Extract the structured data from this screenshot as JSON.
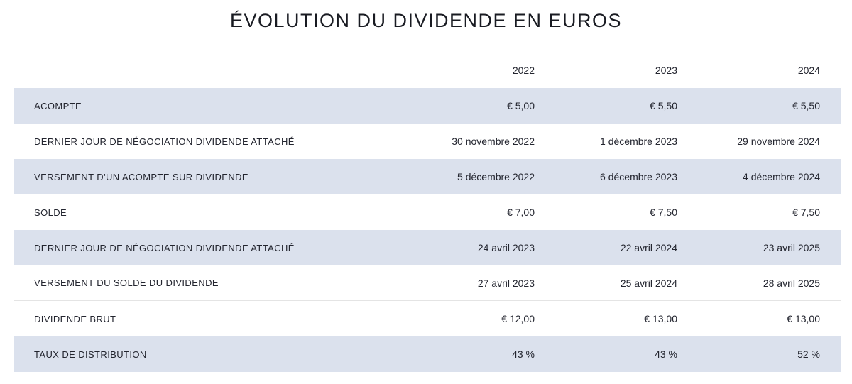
{
  "title": "ÉVOLUTION DU DIVIDENDE EN EUROS",
  "colors": {
    "background": "#ffffff",
    "row_shade": "#dbe1ed",
    "text": "#23252f",
    "divider": "#e4e4e4"
  },
  "table": {
    "columns": [
      "2022",
      "2023",
      "2024"
    ],
    "rows": [
      {
        "label": "ACOMPTE",
        "values": [
          "€ 5,00",
          "€ 5,50",
          "€ 5,50"
        ]
      },
      {
        "label": "DERNIER JOUR DE NÉGOCIATION DIVIDENDE ATTACHÉ",
        "values": [
          "30 novembre 2022",
          "1 décembre 2023",
          "29 novembre 2024"
        ]
      },
      {
        "label": "VERSEMENT D'UN ACOMPTE SUR DIVIDENDE",
        "values": [
          "5 décembre 2022",
          "6 décembre 2023",
          "4 décembre 2024"
        ]
      },
      {
        "label": "SOLDE",
        "values": [
          "€ 7,00",
          "€ 7,50",
          "€ 7,50"
        ]
      },
      {
        "label": "DERNIER JOUR DE NÉGOCIATION DIVIDENDE ATTACHÉ",
        "values": [
          "24 avril 2023",
          "22 avril 2024",
          "23 avril 2025"
        ]
      },
      {
        "label": "VERSEMENT DU SOLDE DU DIVIDENDE",
        "values": [
          "27 avril 2023",
          "25 avril 2024",
          "28 avril 2025"
        ]
      },
      {
        "label": "DIVIDENDE BRUT",
        "values": [
          "€ 12,00",
          "€ 13,00",
          "€ 13,00"
        ]
      },
      {
        "label": "TAUX DE DISTRIBUTION",
        "values": [
          "43 %",
          "43 %",
          "52 %"
        ]
      }
    ]
  }
}
